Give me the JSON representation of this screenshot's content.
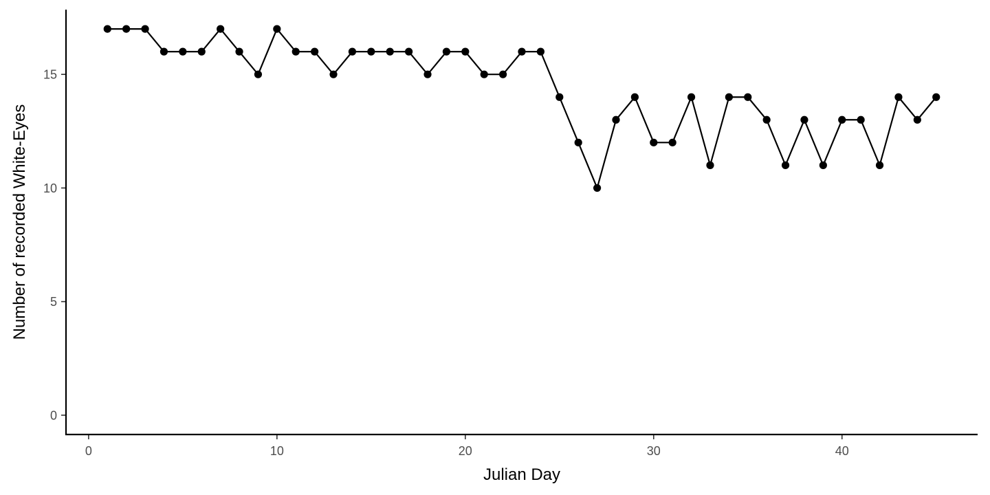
{
  "chart_data": {
    "type": "line",
    "title": "",
    "xlabel": "Julian Day",
    "ylabel": "Number of recorded White-Eyes",
    "xlim": [
      -1.2,
      47.2
    ],
    "ylim": [
      -0.85,
      17.85
    ],
    "x_ticks": [
      0,
      10,
      20,
      30,
      40
    ],
    "y_ticks": [
      0,
      5,
      10,
      15
    ],
    "grid": false,
    "legend": "none",
    "markers": true,
    "colors": {
      "line": "#000000",
      "axis": "#000000",
      "tick_label": "#4d4d4d"
    },
    "series": [
      {
        "x": [
          1,
          2,
          3,
          4,
          5,
          6,
          7,
          8,
          9,
          10,
          11,
          12,
          13,
          14,
          15,
          16,
          17,
          18,
          19,
          20,
          21,
          22,
          23,
          24,
          25,
          26,
          27,
          28,
          29,
          30,
          31,
          32,
          33,
          34,
          35,
          36,
          37,
          38,
          39,
          40,
          41,
          42,
          43,
          44,
          45
        ],
        "values": [
          17,
          17,
          17,
          16,
          16,
          16,
          17,
          16,
          15,
          17,
          16,
          16,
          15,
          16,
          16,
          16,
          16,
          15,
          16,
          16,
          15,
          15,
          16,
          16,
          14,
          12,
          10,
          13,
          14,
          12,
          12,
          14,
          11,
          14,
          14,
          13,
          11,
          13,
          11,
          13,
          13,
          11,
          14,
          13,
          14
        ]
      }
    ]
  }
}
